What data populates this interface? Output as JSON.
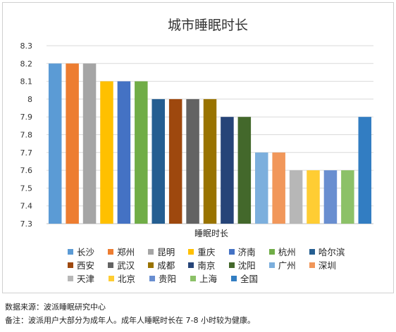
{
  "chart_data": {
    "type": "bar",
    "title": "城市睡眠时长",
    "xlabel": "睡眠时长",
    "ylabel": "",
    "ylim": [
      7.3,
      8.3
    ],
    "yticks": [
      "8.3",
      "8.2",
      "8.1",
      "8",
      "7.9",
      "7.8",
      "7.7",
      "7.6",
      "7.5",
      "7.4",
      "7.3"
    ],
    "grid": true,
    "legend_position": "bottom",
    "categories": [
      "长沙",
      "郑州",
      "昆明",
      "重庆",
      "济南",
      "杭州",
      "哈尔滨",
      "西安",
      "武汉",
      "成都",
      "南京",
      "沈阳",
      "广州",
      "深圳",
      "天津",
      "北京",
      "贵阳",
      "上海",
      "全国"
    ],
    "values": [
      8.2,
      8.2,
      8.2,
      8.1,
      8.1,
      8.1,
      8.0,
      8.0,
      8.0,
      8.0,
      7.9,
      7.9,
      7.7,
      7.7,
      7.6,
      7.6,
      7.6,
      7.6,
      7.9
    ],
    "colors": [
      "#5b9bd5",
      "#ed7d31",
      "#a5a5a5",
      "#ffc000",
      "#4472c4",
      "#70ad47",
      "#255e91",
      "#9e480e",
      "#636363",
      "#997300",
      "#264478",
      "#43682b",
      "#7cafdd",
      "#f1975a",
      "#b7b7b7",
      "#ffcd33",
      "#698ed0",
      "#8cc168",
      "#327dc2"
    ]
  },
  "notes": {
    "source": "数据来源：波派睡眠研究中心",
    "remark": "备注：波派用户大部分为成年人。成年人睡眠时长在 7-8 小时较为健康。"
  }
}
